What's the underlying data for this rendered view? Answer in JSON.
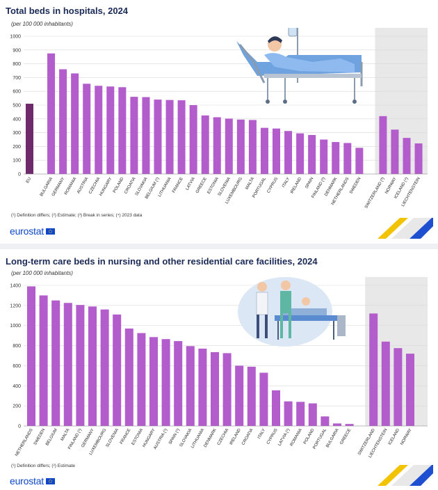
{
  "chart_data": [
    {
      "type": "bar",
      "title": "Total beds in hospitals, 2024",
      "subtitle": "(per 100 000 inhabitants)",
      "ylim": [
        0,
        1000
      ],
      "yticks": [
        0,
        100,
        200,
        300,
        400,
        500,
        600,
        700,
        800,
        900,
        1000
      ],
      "categories": [
        "EU",
        "BULGARIA",
        "GERMANY",
        "ROMANIA",
        "AUSTRIA",
        "CZECHIA",
        "HUNGARY",
        "POLAND",
        "CROATIA",
        "SLOVAKIA",
        "BELGIUM (¹)",
        "LITHUANIA",
        "FRANCE",
        "LATVIA",
        "GREECE",
        "ESTONIA",
        "SLOVENIA",
        "LUXEMBOURG",
        "MALTA",
        "PORTUGAL",
        "CYPRUS",
        "ITALY",
        "IRELAND",
        "SPAIN",
        "FINLAND (²)",
        "DENMARK",
        "NETHERLANDS",
        "SWEDEN",
        "SWITZERLAND (³)",
        "NORWAY",
        "ICELAND (⁴)",
        "LIECHTENSTEIN"
      ],
      "values": [
        510,
        875,
        760,
        730,
        655,
        640,
        635,
        630,
        560,
        558,
        540,
        537,
        535,
        500,
        425,
        412,
        402,
        395,
        392,
        335,
        330,
        312,
        295,
        283,
        250,
        232,
        225,
        190,
        420,
        322,
        262,
        222
      ],
      "groups": {
        "eu": [
          0
        ],
        "members": [
          1,
          27
        ],
        "efta": [
          28,
          31
        ]
      },
      "note": "(¹) Definition differs; (²) Estimate; (³) Break in series; (⁴) 2023 data",
      "colors": {
        "bar": "#b35ccc",
        "eu_bar": "#6e2a6a",
        "efta_bg": "#e8e8e8"
      },
      "illustration": "patient-in-hospital-bed-illustration"
    },
    {
      "type": "bar",
      "title": "Long-term care beds in nursing and other residential care facilities, 2024",
      "subtitle": "(per 100 000 inhabitants)",
      "ylim": [
        0,
        1400
      ],
      "yticks": [
        0,
        200,
        400,
        600,
        800,
        1000,
        1200,
        1400
      ],
      "categories": [
        "NETHERLANDS",
        "SWEDEN",
        "BELGIUM",
        "MALTA",
        "FINLAND (¹)",
        "GERMANY",
        "LUXEMBOURG",
        "SLOVENIA",
        "FRANCE",
        "ESTONIA",
        "HUNGARY",
        "AUSTRIA (¹)",
        "SPAIN (¹)",
        "SLOVAKIA",
        "LITHUANIA",
        "DENMARK",
        "CZECHIA",
        "IRELAND",
        "CROATIA",
        "ITALY",
        "CYPRUS",
        "LATVIA (¹)",
        "ROMANIA",
        "POLAND",
        "PORTUGAL",
        "BULGARIA",
        "GREECE",
        "SWITZERLAND",
        "LIECHTENSTEIN",
        "ICELAND",
        "NORWAY"
      ],
      "values": [
        1390,
        1300,
        1250,
        1225,
        1205,
        1190,
        1160,
        1110,
        970,
        925,
        885,
        865,
        845,
        795,
        770,
        735,
        725,
        600,
        590,
        530,
        355,
        245,
        240,
        225,
        95,
        25,
        20,
        1120,
        840,
        775,
        720
      ],
      "groups": {
        "members": [
          0,
          26
        ],
        "efta": [
          27,
          30
        ]
      },
      "note": "(¹) Definition differs; (²) Estimate",
      "colors": {
        "bar": "#b35ccc",
        "efta_bg": "#e8e8e8"
      },
      "illustration": "nursing-care-staff-illustration"
    }
  ],
  "branding": {
    "logo_text": "eurostat",
    "accent_yellow": "#f2c300",
    "accent_blue": "#1f4fd1"
  }
}
